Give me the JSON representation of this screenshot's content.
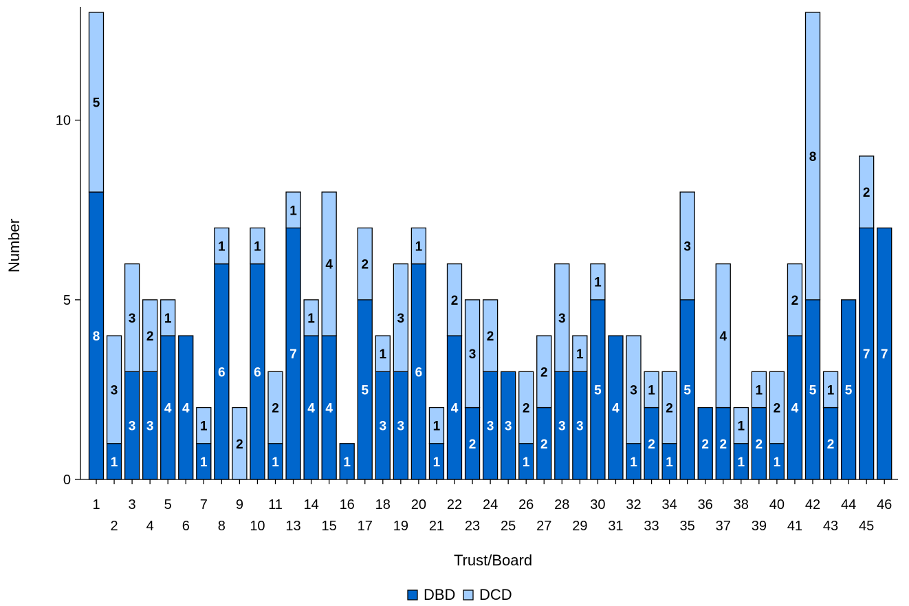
{
  "chart_data": {
    "type": "bar",
    "stacked": true,
    "xlabel": "Trust/Board",
    "ylabel": "Number",
    "ylim": [
      0,
      13
    ],
    "yticks": [
      0,
      5,
      10
    ],
    "grid": false,
    "legend_position": "bottom",
    "categories": [
      "1",
      "2",
      "3",
      "4",
      "5",
      "6",
      "7",
      "8",
      "9",
      "10",
      "11",
      "13",
      "14",
      "15",
      "16",
      "17",
      "18",
      "19",
      "20",
      "21",
      "22",
      "23",
      "24",
      "25",
      "26",
      "27",
      "28",
      "29",
      "30",
      "31",
      "32",
      "33",
      "34",
      "35",
      "36",
      "37",
      "38",
      "39",
      "40",
      "41",
      "42",
      "43",
      "44",
      "45",
      "46"
    ],
    "series": [
      {
        "name": "DBD",
        "color": "#0066cc",
        "label_color": "#ffffff",
        "values": [
          8,
          1,
          3,
          3,
          4,
          4,
          1,
          6,
          0,
          6,
          1,
          7,
          4,
          4,
          1,
          5,
          3,
          3,
          6,
          1,
          4,
          2,
          3,
          3,
          1,
          2,
          3,
          3,
          5,
          4,
          1,
          2,
          1,
          5,
          2,
          2,
          1,
          2,
          1,
          4,
          5,
          2,
          5,
          7,
          7
        ]
      },
      {
        "name": "DCD",
        "color": "#a3ceff",
        "label_color": "#000000",
        "values": [
          5,
          3,
          3,
          2,
          1,
          0,
          1,
          1,
          2,
          1,
          2,
          1,
          1,
          4,
          0,
          2,
          1,
          3,
          1,
          1,
          2,
          3,
          2,
          0,
          2,
          2,
          3,
          1,
          1,
          0,
          3,
          1,
          2,
          3,
          0,
          4,
          1,
          1,
          2,
          2,
          8,
          1,
          0,
          2,
          0
        ]
      }
    ]
  },
  "legend": {
    "items": [
      {
        "label": "DBD",
        "color": "#0066cc"
      },
      {
        "label": "DCD",
        "color": "#a3ceff"
      }
    ]
  }
}
